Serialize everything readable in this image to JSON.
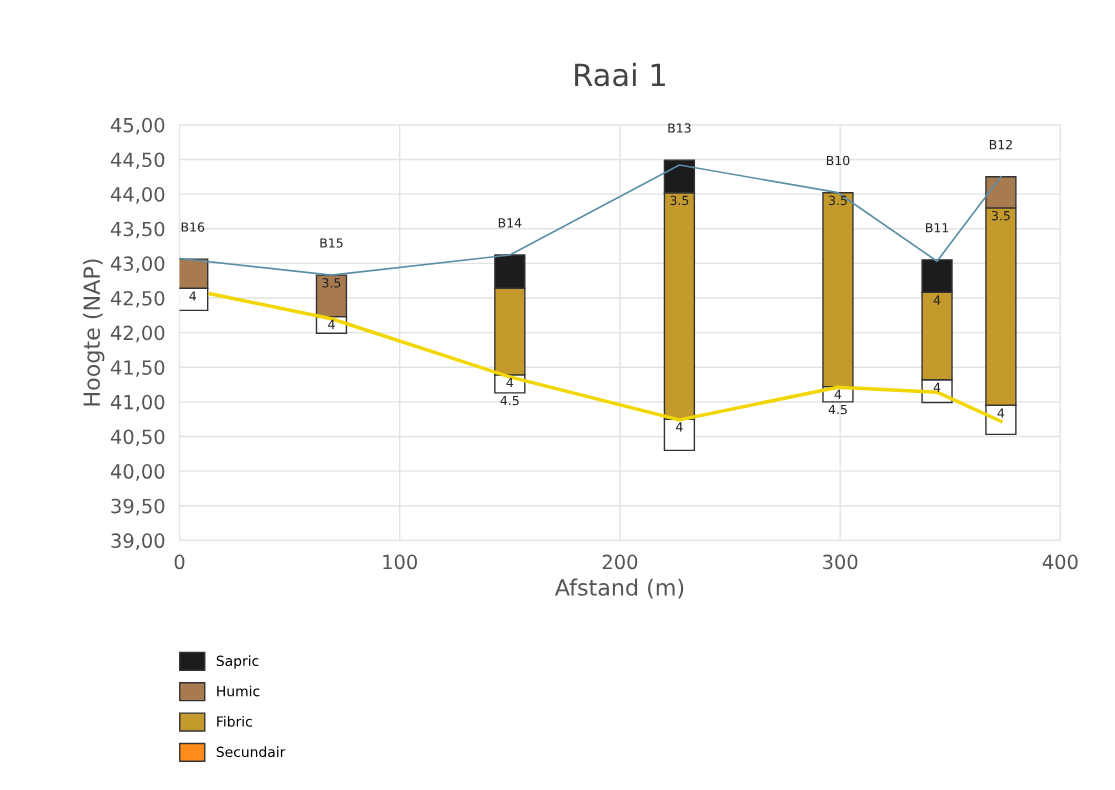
{
  "chart_data": {
    "type": "bar",
    "title": "Raai 1",
    "xlabel": "Afstand (m)",
    "ylabel": "Hoogte (NAP)",
    "xlim": [
      0,
      400
    ],
    "xticks": [
      0,
      100,
      200,
      300,
      400
    ],
    "ylim": [
      39,
      45
    ],
    "yticks": [
      {
        "value": 39,
        "label": "39,00"
      },
      {
        "value": 39.5,
        "label": "39,50"
      },
      {
        "value": 40,
        "label": "40,00"
      },
      {
        "value": 40.5,
        "label": "40,50"
      },
      {
        "value": 41,
        "label": "41,00"
      },
      {
        "value": 41.5,
        "label": "41,50"
      },
      {
        "value": 42,
        "label": "42,00"
      },
      {
        "value": 42.5,
        "label": "42,50"
      },
      {
        "value": 43,
        "label": "43,00"
      },
      {
        "value": 43.5,
        "label": "43,50"
      },
      {
        "value": 44,
        "label": "44,00"
      },
      {
        "value": 44.5,
        "label": "44,50"
      },
      {
        "value": 45,
        "label": "45,00"
      }
    ],
    "grid": true,
    "legend": "bottom",
    "series": [
      {
        "color": "#ffffff",
        "x": [
          6,
          69,
          150,
          227,
          299,
          344,
          373
        ],
        "base": [
          42.32,
          41.99,
          41.13,
          40.3,
          41.0,
          40.99,
          40.53
        ],
        "values": [
          0.32,
          0.24,
          0.26,
          0.45,
          0.22,
          0.33,
          0.42
        ]
      },
      {
        "name": "Secundair",
        "color": "#ff8c1a"
      },
      {
        "name": "Fibric",
        "color": "#c49a2c",
        "x": [
          150,
          227,
          299,
          344,
          373
        ],
        "base": [
          41.39,
          40.75,
          41.22,
          41.32,
          40.95
        ],
        "values": [
          1.25,
          3.27,
          2.8,
          1.26,
          2.85
        ]
      },
      {
        "name": "Humic",
        "color": "#a87a4f",
        "x": [
          6,
          69,
          373
        ],
        "base": [
          42.64,
          42.23,
          43.8
        ],
        "values": [
          0.42,
          0.6,
          0.45
        ]
      },
      {
        "name": "Sapric",
        "color": "#1c1c1c",
        "x": [
          150,
          227,
          344
        ],
        "base": [
          42.64,
          44.02,
          42.58
        ],
        "values": [
          0.48,
          0.47,
          0.47
        ]
      },
      {
        "type": "line",
        "color": "#5b8fa8",
        "x": [
          0,
          69,
          150,
          227,
          299,
          344,
          373
        ],
        "values": [
          43.07,
          42.83,
          43.12,
          44.42,
          44.02,
          43.03,
          44.25
        ]
      },
      {
        "type": "line",
        "color": "#f2d600",
        "x": [
          14,
          69,
          150,
          227,
          299,
          344,
          373
        ],
        "values": [
          42.56,
          42.2,
          41.36,
          40.74,
          41.21,
          41.14,
          40.72
        ]
      }
    ],
    "annotations": [
      {
        "text": "B16",
        "x": 6,
        "y": 43.06
      },
      {
        "text": "B15",
        "x": 69,
        "y": 42.83
      },
      {
        "text": "B14",
        "x": 150,
        "y": 43.12
      },
      {
        "text": "B13",
        "x": 227,
        "y": 44.49
      },
      {
        "text": "B10",
        "x": 299,
        "y": 44.02
      },
      {
        "text": "B11",
        "x": 344,
        "y": 43.05
      },
      {
        "text": "B12",
        "x": 373,
        "y": 44.25
      },
      {
        "text": "4",
        "x": 6,
        "y": 42.64
      },
      {
        "text": "3.5",
        "x": 69,
        "y": 42.83
      },
      {
        "text": "4",
        "x": 69,
        "y": 42.23
      },
      {
        "text": "4",
        "x": 150,
        "y": 41.39
      },
      {
        "text": "4.5",
        "x": 150,
        "y": 41.13
      },
      {
        "text": "3.5",
        "x": 227,
        "y": 44.02
      },
      {
        "text": "4",
        "x": 227,
        "y": 40.75
      },
      {
        "text": "3.5",
        "x": 299,
        "y": 44.02
      },
      {
        "text": "4",
        "x": 299,
        "y": 41.22
      },
      {
        "text": "4.5",
        "x": 299,
        "y": 41.0
      },
      {
        "text": "4",
        "x": 344,
        "y": 42.58
      },
      {
        "text": "4",
        "x": 344,
        "y": 41.32
      },
      {
        "text": "3.5",
        "x": 373,
        "y": 43.8
      },
      {
        "text": "4",
        "x": 373,
        "y": 40.95
      }
    ]
  }
}
